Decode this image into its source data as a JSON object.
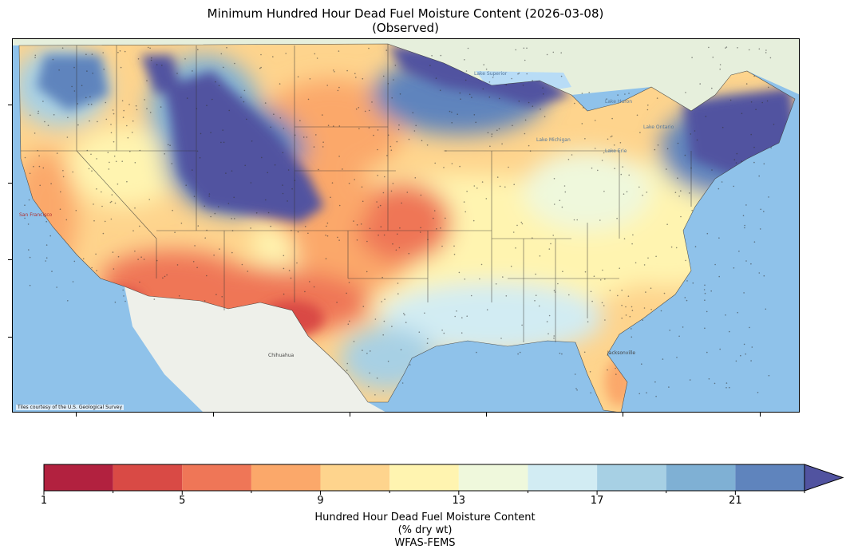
{
  "title": {
    "line1": "Minimum Hundred Hour Dead Fuel Moisture Content (2026-03-08)",
    "line2": "(Observed)"
  },
  "map": {
    "attribution": "Tiles courtesy of the U.S. Geological Survey",
    "place_labels": [
      "San Francisco",
      "Chihuahua",
      "Jacksonville",
      "Lake Superior",
      "Lake Michigan",
      "Lake Huron",
      "Lake Erie",
      "Lake Ontario"
    ]
  },
  "colorbar": {
    "levels": [
      1,
      3,
      5,
      7,
      9,
      11,
      13,
      15,
      17,
      19,
      21,
      23
    ],
    "colors": [
      "#b2213f",
      "#d94a45",
      "#ef7657",
      "#fba86a",
      "#fed48d",
      "#fff4b0",
      "#eff8dc",
      "#d2ecf3",
      "#a7d0e4",
      "#7fb0d4",
      "#5f84bd",
      "#5153a0"
    ],
    "extend": "max",
    "tick_labels": [
      "1",
      "5",
      "9",
      "13",
      "17",
      "21"
    ],
    "label_line1": "Hundred Hour Dead Fuel Moisture Content",
    "label_line2": "(% dry wt)",
    "label_line3": "WFAS-FEMS"
  }
}
